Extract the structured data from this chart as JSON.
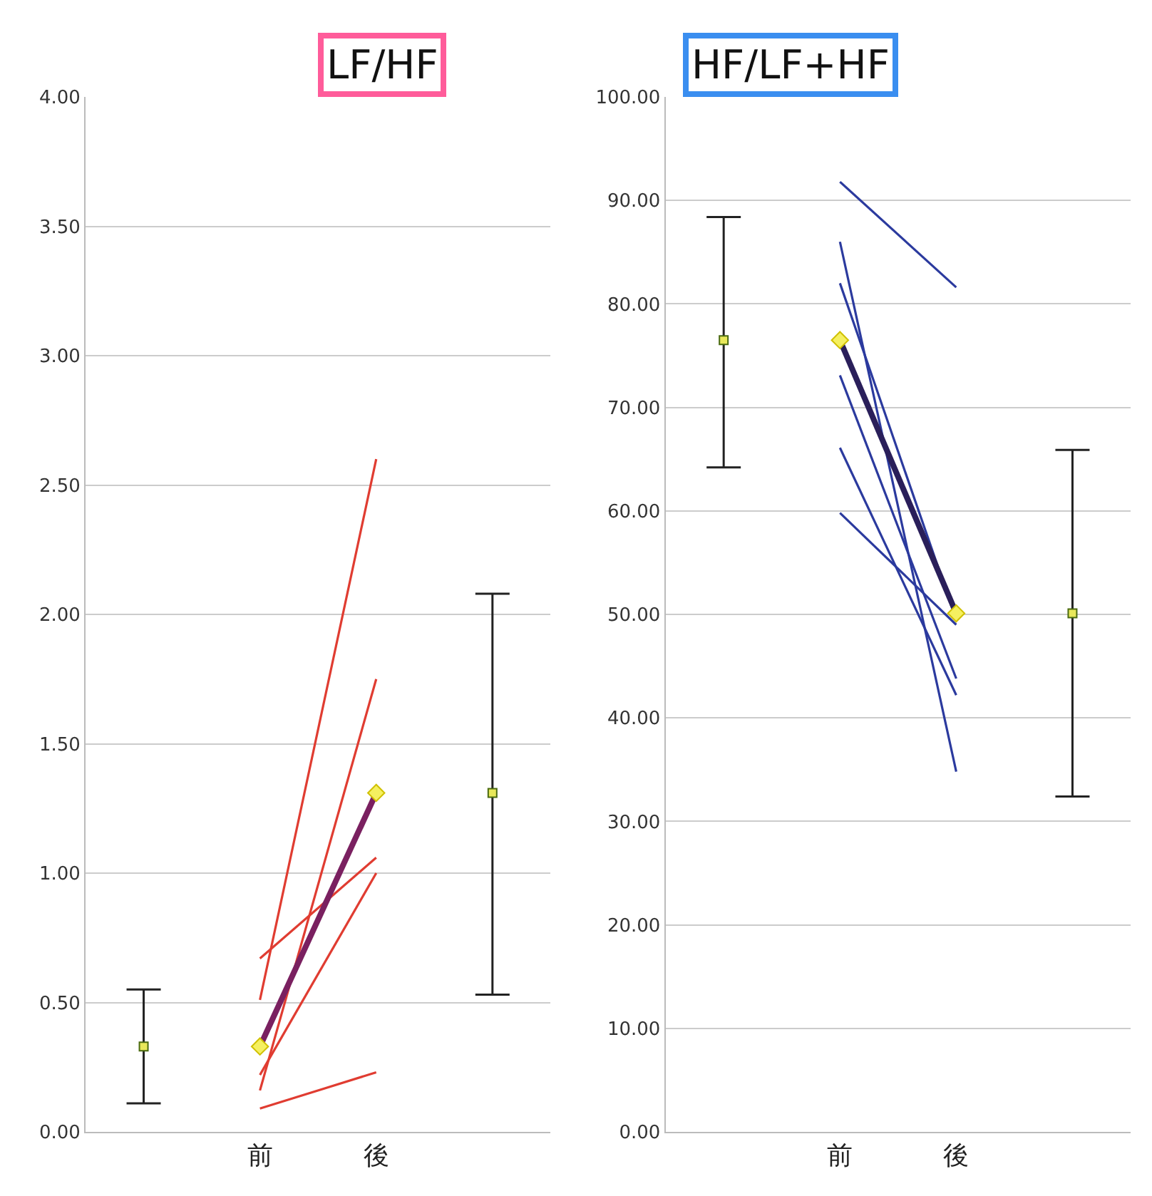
{
  "chart_data": [
    {
      "type": "line",
      "title": "LF/HF",
      "categories": [
        null,
        "前",
        "後",
        null
      ],
      "ylim": [
        0,
        4
      ],
      "yticks": [
        {
          "value": 0,
          "label": "0.00"
        },
        {
          "value": 0.5,
          "label": "0.50"
        },
        {
          "value": 1,
          "label": "1.00"
        },
        {
          "value": 1.5,
          "label": "1.50"
        },
        {
          "value": 2,
          "label": "2.00"
        },
        {
          "value": 2.5,
          "label": "2.50"
        },
        {
          "value": 3,
          "label": "3.00"
        },
        {
          "value": 3.5,
          "label": "3.50"
        },
        {
          "value": 4,
          "label": "4.00"
        }
      ],
      "grid": "y",
      "marker": "none",
      "series": [
        {
          "color": "#e03c31",
          "values": [
            null,
            0.51,
            2.6,
            null
          ]
        },
        {
          "color": "#e03c31",
          "values": [
            null,
            0.67,
            1.06,
            null
          ]
        },
        {
          "color": "#e03c31",
          "values": [
            null,
            0.16,
            1.75,
            null
          ]
        },
        {
          "color": "#e03c31",
          "values": [
            null,
            0.22,
            1.0,
            null
          ]
        },
        {
          "color": "#e03c31",
          "values": [
            null,
            0.09,
            0.23,
            null
          ]
        },
        {
          "color": "#7a2060",
          "marker": "diamond",
          "values": [
            null,
            0.33,
            1.31,
            null
          ]
        },
        {
          "type": "scatter",
          "color": "#e8e85a",
          "marker": "square",
          "values": [
            0.33,
            null,
            null,
            1.31
          ],
          "errors": [
            [
              0.11,
              0.55
            ],
            null,
            null,
            [
              0.53,
              2.08
            ]
          ]
        }
      ]
    },
    {
      "type": "line",
      "title": "HF/LF+HF",
      "categories": [
        null,
        "前",
        "後",
        null
      ],
      "ylim": [
        0,
        100
      ],
      "yticks": [
        {
          "value": 0,
          "label": "0.00"
        },
        {
          "value": 10,
          "label": "10.00"
        },
        {
          "value": 20,
          "label": "20.00"
        },
        {
          "value": 30,
          "label": "30.00"
        },
        {
          "value": 40,
          "label": "40.00"
        },
        {
          "value": 50,
          "label": "50.00"
        },
        {
          "value": 60,
          "label": "60.00"
        },
        {
          "value": 70,
          "label": "70.00"
        },
        {
          "value": 80,
          "label": "80.00"
        },
        {
          "value": 90,
          "label": "90.00"
        },
        {
          "value": 100,
          "label": "100.00"
        }
      ],
      "grid": "y",
      "marker": "none",
      "series": [
        {
          "color": "#2b3a9e",
          "values": [
            null,
            91.8,
            81.6,
            null
          ]
        },
        {
          "color": "#2b3a9e",
          "values": [
            null,
            86.0,
            34.8,
            null
          ]
        },
        {
          "color": "#2b3a9e",
          "values": [
            null,
            82.0,
            49.5,
            null
          ]
        },
        {
          "color": "#2b3a9e",
          "values": [
            null,
            73.1,
            43.8,
            null
          ]
        },
        {
          "color": "#2b3a9e",
          "values": [
            null,
            66.1,
            42.2,
            null
          ]
        },
        {
          "color": "#2b3a9e",
          "values": [
            null,
            59.8,
            49.0,
            null
          ]
        },
        {
          "color": "#2a1f5a",
          "marker": "diamond",
          "values": [
            null,
            76.5,
            50.1,
            null
          ]
        },
        {
          "type": "scatter",
          "color": "#e8e85a",
          "marker": "square",
          "values": [
            76.5,
            null,
            null,
            50.1
          ],
          "errors": [
            [
              64.2,
              88.4
            ],
            null,
            null,
            [
              32.4,
              65.9
            ]
          ]
        }
      ]
    }
  ]
}
